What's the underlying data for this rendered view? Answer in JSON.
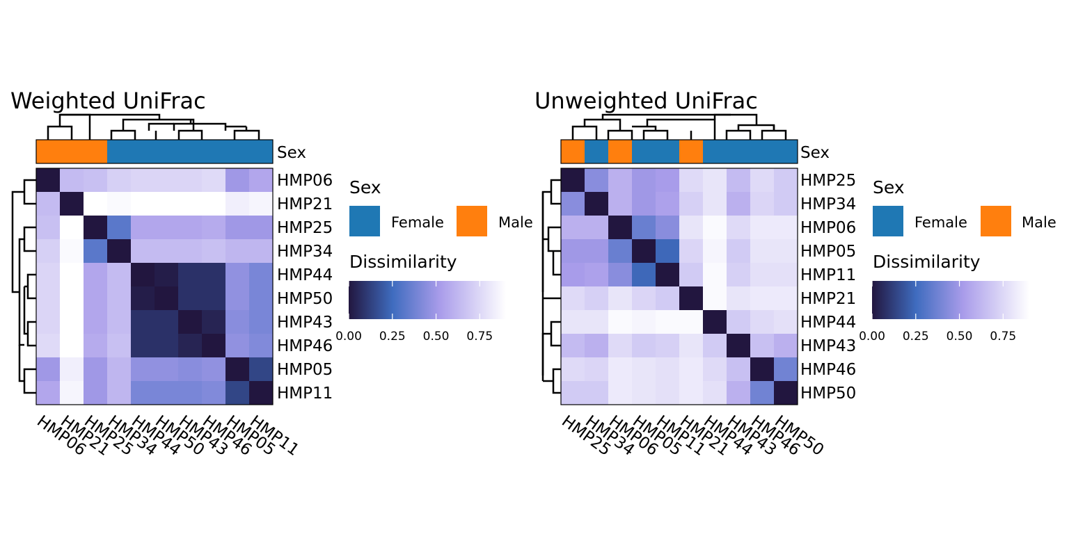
{
  "panels": [
    {
      "title": "Weighted UniFrac",
      "annotation_label": "Sex",
      "sex_legend_title": "Sex",
      "scale_legend_title": "Dissimilarity",
      "scale_ticks": [
        "0.00",
        "0.25",
        "0.50",
        "0.75"
      ]
    },
    {
      "title": "Unweighted UniFrac",
      "annotation_label": "Sex",
      "sex_legend_title": "Sex",
      "scale_legend_title": "Dissimilarity",
      "scale_ticks": [
        "0.00",
        "0.25",
        "0.50",
        "0.75"
      ]
    }
  ],
  "colors": {
    "female": "#1F78B4",
    "male": "#FF7F0E",
    "scale": [
      "#22163F",
      "#3F6CBF",
      "#A99CEA",
      "#FFFFFF"
    ]
  },
  "sex_levels": [
    {
      "label": "Female",
      "color": "#1F78B4"
    },
    {
      "label": "Male",
      "color": "#FF7F0E"
    }
  ],
  "chart_data": [
    {
      "type": "heatmap",
      "title": "Weighted UniFrac",
      "legend_title": "Dissimilarity",
      "scale_range": [
        0,
        0.9
      ],
      "scale_ticks": [
        0.0,
        0.25,
        0.5,
        0.75
      ],
      "row_labels": [
        "HMP06",
        "HMP21",
        "HMP25",
        "HMP34",
        "HMP44",
        "HMP50",
        "HMP43",
        "HMP46",
        "HMP05",
        "HMP11"
      ],
      "col_labels": [
        "HMP06",
        "HMP21",
        "HMP25",
        "HMP34",
        "HMP44",
        "HMP50",
        "HMP43",
        "HMP46",
        "HMP05",
        "HMP11"
      ],
      "sex": [
        "Male",
        "Male",
        "Male",
        "Female",
        "Female",
        "Female",
        "Female",
        "Female",
        "Female",
        "Female"
      ],
      "values": [
        [
          0.0,
          0.64,
          0.66,
          0.72,
          0.74,
          0.74,
          0.74,
          0.76,
          0.5,
          0.56
        ],
        [
          0.64,
          0.0,
          0.9,
          0.88,
          0.9,
          0.9,
          0.9,
          0.9,
          0.84,
          0.86
        ],
        [
          0.66,
          0.9,
          0.0,
          0.32,
          0.56,
          0.56,
          0.56,
          0.58,
          0.5,
          0.5
        ],
        [
          0.72,
          0.88,
          0.32,
          0.0,
          0.64,
          0.64,
          0.64,
          0.66,
          0.62,
          0.62
        ],
        [
          0.74,
          0.9,
          0.56,
          0.64,
          0.0,
          0.02,
          0.08,
          0.08,
          0.46,
          0.4
        ],
        [
          0.74,
          0.9,
          0.56,
          0.64,
          0.02,
          0.0,
          0.08,
          0.08,
          0.46,
          0.4
        ],
        [
          0.74,
          0.9,
          0.56,
          0.64,
          0.08,
          0.08,
          0.0,
          0.04,
          0.44,
          0.4
        ],
        [
          0.76,
          0.9,
          0.58,
          0.66,
          0.08,
          0.08,
          0.04,
          0.0,
          0.46,
          0.42
        ],
        [
          0.5,
          0.84,
          0.5,
          0.62,
          0.46,
          0.46,
          0.44,
          0.46,
          0.0,
          0.14
        ],
        [
          0.56,
          0.86,
          0.5,
          0.62,
          0.4,
          0.4,
          0.4,
          0.42,
          0.14,
          0.0
        ]
      ]
    },
    {
      "type": "heatmap",
      "title": "Unweighted UniFrac",
      "legend_title": "Dissimilarity",
      "scale_range": [
        0,
        0.9
      ],
      "scale_ticks": [
        0.0,
        0.25,
        0.5,
        0.75
      ],
      "row_labels": [
        "HMP25",
        "HMP34",
        "HMP06",
        "HMP05",
        "HMP11",
        "HMP21",
        "HMP44",
        "HMP43",
        "HMP46",
        "HMP50"
      ],
      "col_labels": [
        "HMP25",
        "HMP34",
        "HMP06",
        "HMP05",
        "HMP11",
        "HMP21",
        "HMP44",
        "HMP43",
        "HMP46",
        "HMP50"
      ],
      "sex": [
        "Male",
        "Female",
        "Male",
        "Female",
        "Female",
        "Male",
        "Female",
        "Female",
        "Female",
        "Female"
      ],
      "values": [
        [
          0.0,
          0.44,
          0.6,
          0.5,
          0.52,
          0.76,
          0.8,
          0.64,
          0.76,
          0.7
        ],
        [
          0.44,
          0.0,
          0.6,
          0.5,
          0.54,
          0.72,
          0.8,
          0.6,
          0.74,
          0.7
        ],
        [
          0.6,
          0.6,
          0.0,
          0.36,
          0.44,
          0.8,
          0.88,
          0.76,
          0.82,
          0.82
        ],
        [
          0.5,
          0.5,
          0.36,
          0.0,
          0.24,
          0.74,
          0.86,
          0.7,
          0.8,
          0.8
        ],
        [
          0.52,
          0.54,
          0.44,
          0.24,
          0.0,
          0.7,
          0.88,
          0.72,
          0.78,
          0.78
        ],
        [
          0.76,
          0.72,
          0.8,
          0.74,
          0.7,
          0.0,
          0.88,
          0.8,
          0.82,
          0.82
        ],
        [
          0.8,
          0.8,
          0.88,
          0.86,
          0.88,
          0.88,
          0.0,
          0.7,
          0.76,
          0.78
        ],
        [
          0.64,
          0.6,
          0.76,
          0.7,
          0.72,
          0.8,
          0.7,
          0.0,
          0.66,
          0.6
        ],
        [
          0.76,
          0.74,
          0.82,
          0.8,
          0.78,
          0.82,
          0.76,
          0.66,
          0.0,
          0.38
        ],
        [
          0.7,
          0.7,
          0.82,
          0.8,
          0.78,
          0.82,
          0.78,
          0.6,
          0.38,
          0.0
        ]
      ]
    }
  ]
}
